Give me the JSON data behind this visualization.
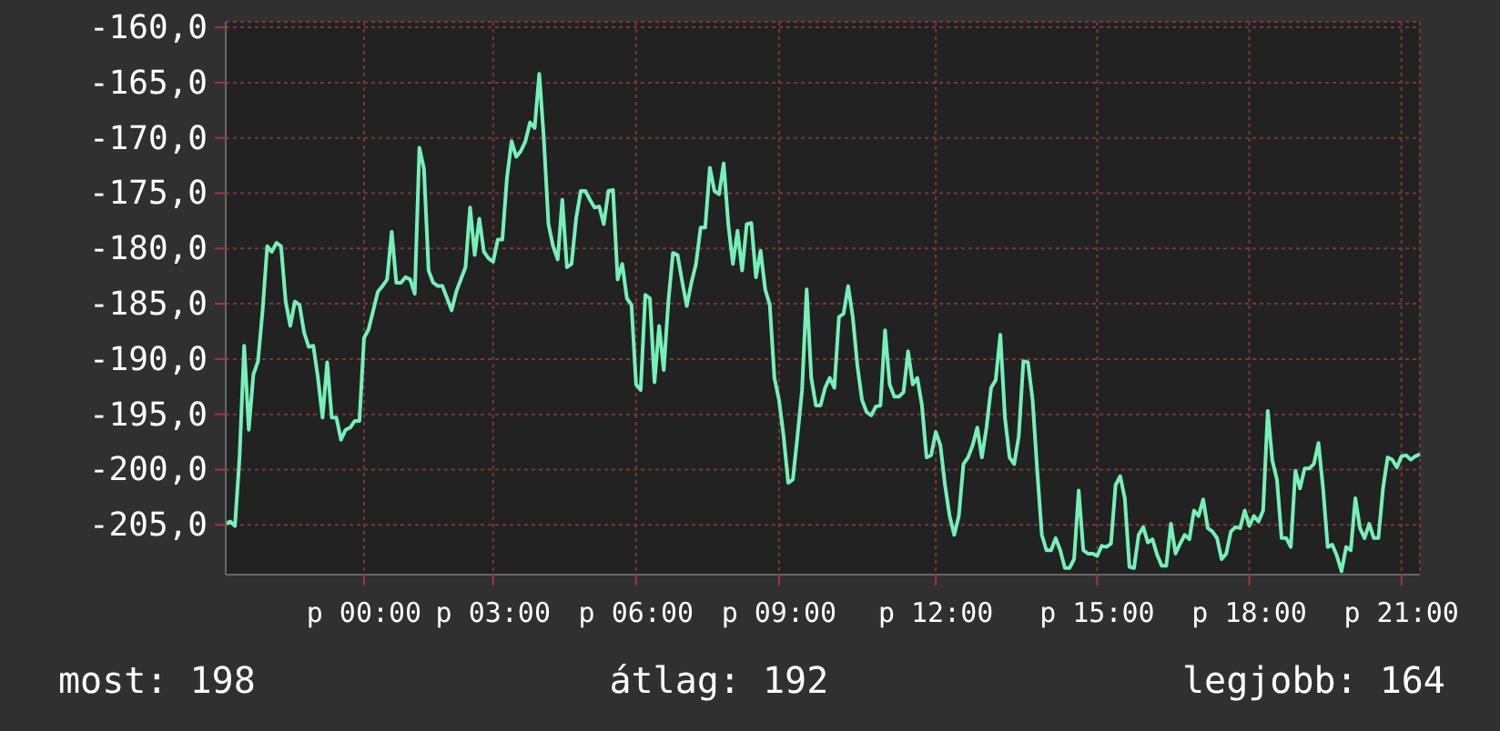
{
  "chart_data": {
    "type": "line",
    "color": "#76f0b8",
    "grid": true,
    "categories": [
      null,
      null,
      null,
      null,
      null,
      null,
      null,
      null,
      null,
      null,
      null,
      null,
      null,
      null,
      null,
      null,
      null,
      null,
      null,
      null,
      null,
      null,
      null,
      null,
      null,
      null,
      null,
      null,
      null,
      null,
      "p 00:00",
      null,
      null,
      null,
      null,
      null,
      null,
      null,
      null,
      null,
      null,
      null,
      null,
      null,
      null,
      null,
      null,
      null,
      null,
      null,
      null,
      null,
      null,
      null,
      null,
      null,
      null,
      null,
      "p 03:00",
      null,
      null,
      null,
      null,
      null,
      null,
      null,
      null,
      null,
      null,
      null,
      null,
      null,
      null,
      null,
      null,
      null,
      null,
      null,
      null,
      null,
      null,
      null,
      null,
      null,
      null,
      null,
      null,
      null,
      null,
      "p 06:00",
      null,
      null,
      null,
      null,
      null,
      null,
      null,
      null,
      null,
      null,
      null,
      null,
      null,
      null,
      null,
      null,
      null,
      null,
      null,
      null,
      null,
      null,
      null,
      null,
      null,
      null,
      null,
      null,
      null,
      null,
      "p 09:00",
      null,
      null,
      null,
      null,
      null,
      null,
      null,
      null,
      null,
      null,
      null,
      null,
      null,
      null,
      null,
      null,
      null,
      null,
      null,
      null,
      null,
      null,
      null,
      null,
      null,
      null,
      null,
      null,
      null,
      null,
      null,
      null,
      null,
      "p 12:00",
      null,
      null,
      null,
      null,
      null,
      null,
      null,
      null,
      null,
      null,
      null,
      null,
      null,
      null,
      null,
      null,
      null,
      null,
      null,
      null,
      null,
      null,
      null,
      null,
      null,
      null,
      null,
      null,
      null,
      null,
      null,
      null,
      null,
      null,
      "p 15:00",
      null,
      null,
      null,
      null,
      null,
      null,
      null,
      null,
      null,
      null,
      null,
      null,
      null,
      null,
      null,
      null,
      null,
      null,
      null,
      null,
      null,
      null,
      null,
      null,
      null,
      null,
      null,
      null,
      null,
      null,
      null,
      null,
      "p 18:00",
      null,
      null,
      null,
      null,
      null,
      null,
      null,
      null,
      null,
      null,
      null,
      null,
      null,
      null,
      null,
      null,
      null,
      null,
      null,
      null,
      null,
      null,
      null,
      null,
      null,
      null,
      null,
      null,
      null,
      null,
      null,
      null,
      "p 21:00",
      null,
      null,
      null,
      null
    ],
    "ylim": [
      -209.5,
      -159.5
    ],
    "yticks": [
      {
        "value": -205,
        "label": "-205,0"
      },
      {
        "value": -200,
        "label": "-200,0"
      },
      {
        "value": -195,
        "label": "-195,0"
      },
      {
        "value": -190,
        "label": "-190,0"
      },
      {
        "value": -185,
        "label": "-185,0"
      },
      {
        "value": -180,
        "label": "-180,0"
      },
      {
        "value": -175,
        "label": "-175,0"
      },
      {
        "value": -170,
        "label": "-170,0"
      },
      {
        "value": -165,
        "label": "-165,0"
      },
      {
        "value": -160,
        "label": "-160,0"
      }
    ],
    "values": [
      -204.9,
      -204.7,
      -205.1,
      -198.9,
      -188.8,
      -196.4,
      -191.4,
      -190.2,
      -185.6,
      -179.8,
      -180.3,
      -179.5,
      -179.8,
      -184.8,
      -187.0,
      -184.8,
      -185.1,
      -187.6,
      -188.9,
      -188.8,
      -191.7,
      -195.3,
      -190.3,
      -195.3,
      -195.3,
      -197.3,
      -196.4,
      -196.2,
      -195.6,
      -195.6,
      -188.1,
      -187.3,
      -185.6,
      -183.9,
      -183.4,
      -182.8,
      -178.5,
      -183.1,
      -183.1,
      -182.6,
      -182.8,
      -184.1,
      -170.9,
      -172.8,
      -182.0,
      -183.1,
      -183.4,
      -183.4,
      -184.5,
      -185.6,
      -183.9,
      -182.8,
      -181.7,
      -176.3,
      -180.6,
      -177.3,
      -180.3,
      -180.9,
      -181.2,
      -179.2,
      -179.2,
      -173.6,
      -170.3,
      -171.7,
      -171.2,
      -170.3,
      -168.6,
      -169.1,
      -164.2,
      -170.1,
      -177.8,
      -179.8,
      -181.0,
      -175.6,
      -181.7,
      -181.4,
      -177.3,
      -174.8,
      -174.8,
      -175.6,
      -176.3,
      -176.2,
      -177.8,
      -174.8,
      -174.7,
      -182.8,
      -181.4,
      -184.5,
      -185.1,
      -192.3,
      -192.8,
      -184.2,
      -184.5,
      -192.1,
      -187.0,
      -191.0,
      -184.8,
      -180.4,
      -180.6,
      -183.0,
      -185.2,
      -183.1,
      -181.4,
      -178.1,
      -178.1,
      -172.7,
      -174.8,
      -175.1,
      -172.3,
      -177.8,
      -181.4,
      -178.4,
      -182.0,
      -177.8,
      -177.7,
      -182.6,
      -180.2,
      -183.7,
      -185.1,
      -191.7,
      -193.7,
      -197.0,
      -201.2,
      -200.9,
      -197.0,
      -192.8,
      -183.7,
      -191.7,
      -194.2,
      -194.2,
      -192.6,
      -191.7,
      -192.6,
      -186.2,
      -185.9,
      -183.4,
      -186.2,
      -190.6,
      -193.7,
      -194.8,
      -195.1,
      -194.3,
      -194.2,
      -187.4,
      -192.3,
      -193.4,
      -193.4,
      -193.0,
      -189.3,
      -192.3,
      -191.7,
      -194.2,
      -198.9,
      -198.7,
      -196.6,
      -197.8,
      -201.4,
      -204.2,
      -205.9,
      -204.2,
      -199.5,
      -198.9,
      -197.8,
      -196.2,
      -198.9,
      -196.2,
      -192.6,
      -191.9,
      -187.8,
      -195.3,
      -198.9,
      -199.5,
      -197.0,
      -190.2,
      -190.3,
      -193.7,
      -200.1,
      -205.9,
      -207.3,
      -207.3,
      -206.2,
      -207.3,
      -208.9,
      -208.9,
      -208.1,
      -201.9,
      -207.3,
      -207.6,
      -207.6,
      -207.8,
      -206.9,
      -207.0,
      -206.7,
      -201.4,
      -200.6,
      -202.6,
      -208.8,
      -208.9,
      -205.9,
      -205.2,
      -206.6,
      -206.3,
      -207.7,
      -208.7,
      -208.7,
      -204.9,
      -207.6,
      -206.7,
      -205.9,
      -206.3,
      -203.7,
      -204.2,
      -202.7,
      -205.3,
      -205.6,
      -206.2,
      -208.1,
      -207.6,
      -205.6,
      -205.2,
      -205.3,
      -203.7,
      -205.1,
      -204.2,
      -204.7,
      -203.7,
      -194.7,
      -199.2,
      -200.9,
      -206.2,
      -206.2,
      -207.0,
      -200.1,
      -201.7,
      -199.9,
      -199.9,
      -199.5,
      -197.6,
      -201.7,
      -207.0,
      -206.8,
      -207.8,
      -209.2,
      -207.0,
      -207.3,
      -202.6,
      -205.3,
      -206.2,
      -204.9,
      -206.2,
      -206.2,
      -201.7,
      -198.9,
      -199.1,
      -199.8,
      -198.8,
      -198.7,
      -199.1,
      -198.8,
      -198.6
    ],
    "annotations": [
      "most: 198",
      "átlag: 192",
      "legjobb: 164"
    ]
  }
}
